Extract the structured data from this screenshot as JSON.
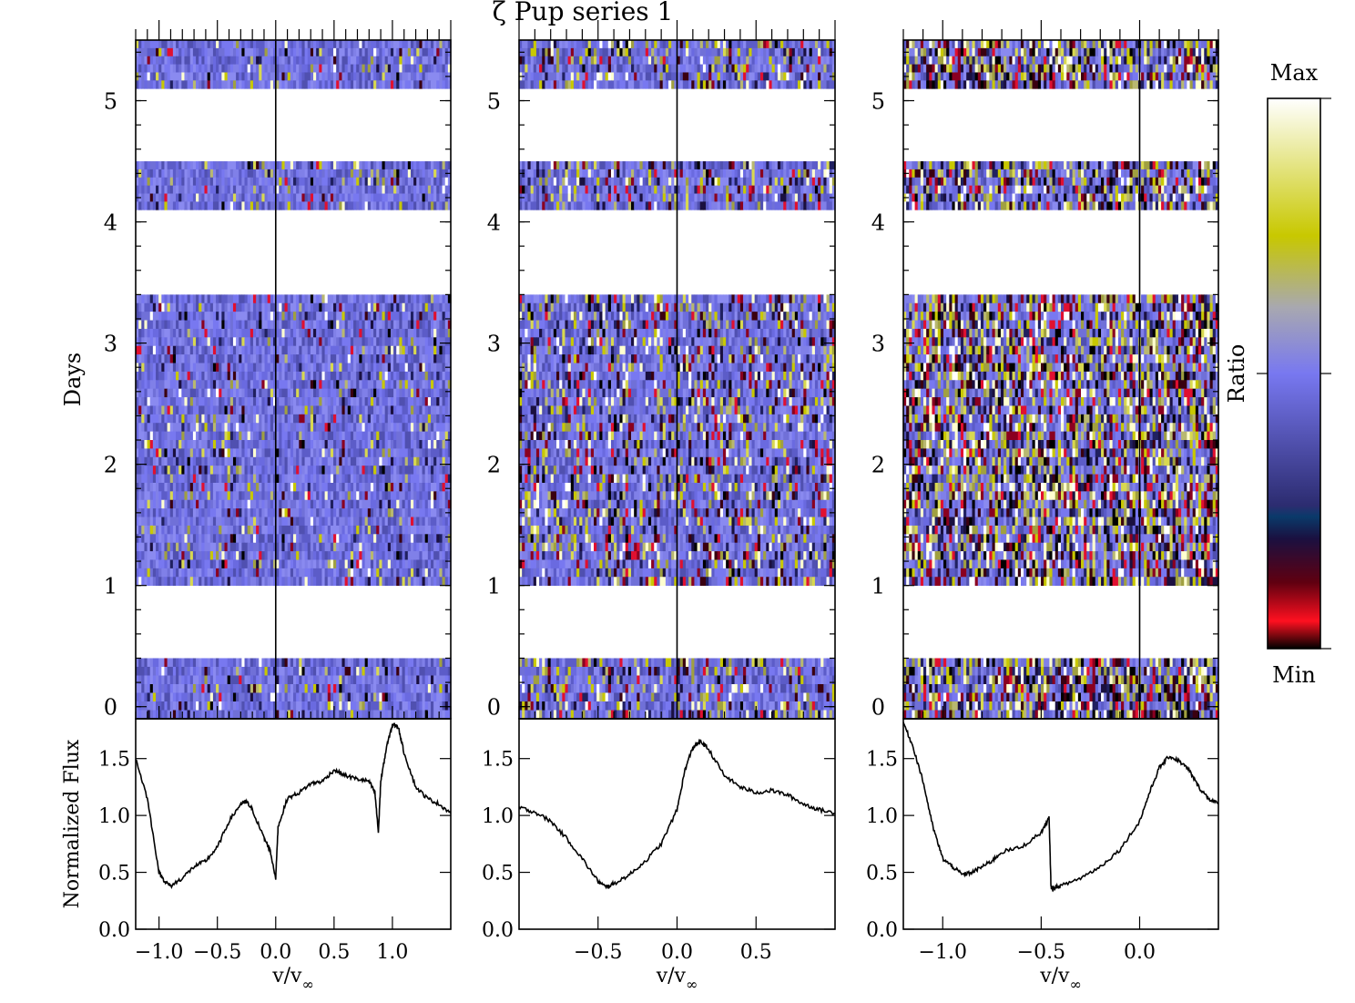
{
  "figure": {
    "title": "ζ Pup series 1"
  },
  "chart_data": [
    {
      "type": "heatmap",
      "panel": "left",
      "ylabel": "Days",
      "ylim": [
        -0.1,
        5.5
      ],
      "xlim": [
        -1.2,
        1.5
      ],
      "y_ticks": [
        "0",
        "1",
        "2",
        "3",
        "4",
        "5"
      ],
      "day_bands": [
        [
          -0.1,
          0.4
        ],
        [
          1.0,
          3.4
        ],
        [
          4.1,
          4.5
        ],
        [
          5.1,
          5.5
        ]
      ],
      "zero_line": 0.0
    },
    {
      "type": "heatmap",
      "panel": "middle",
      "ylim": [
        -0.1,
        5.5
      ],
      "xlim": [
        -1.0,
        1.0
      ],
      "y_ticks": [
        "0",
        "1",
        "2",
        "3",
        "4",
        "5"
      ],
      "day_bands": [
        [
          -0.1,
          0.4
        ],
        [
          1.0,
          3.4
        ],
        [
          4.1,
          4.5
        ],
        [
          5.1,
          5.5
        ]
      ],
      "zero_line": 0.0
    },
    {
      "type": "heatmap",
      "panel": "right",
      "ylim": [
        -0.1,
        5.5
      ],
      "xlim": [
        -1.2,
        0.4
      ],
      "y_ticks": [
        "0",
        "1",
        "2",
        "3",
        "4",
        "5"
      ],
      "day_bands": [
        [
          -0.1,
          0.4
        ],
        [
          1.0,
          3.4
        ],
        [
          4.1,
          4.5
        ],
        [
          5.1,
          5.5
        ]
      ],
      "zero_line": 0.0
    },
    {
      "type": "line",
      "panel": "left",
      "ylabel": "Normalized Flux",
      "xlabel": "v/v∞",
      "xlim": [
        -1.2,
        1.5
      ],
      "ylim": [
        0.0,
        1.85
      ],
      "x_ticks": [
        "−1.0",
        "−0.5",
        "0.0",
        "0.5",
        "1.0"
      ],
      "y_ticks": [
        "0.0",
        "0.5",
        "1.0",
        "1.5"
      ],
      "x": [
        -1.2,
        -1.1,
        -1.0,
        -0.95,
        -0.9,
        -0.8,
        -0.7,
        -0.6,
        -0.5,
        -0.4,
        -0.3,
        -0.25,
        -0.2,
        -0.1,
        -0.05,
        0.0,
        0.02,
        0.1,
        0.2,
        0.3,
        0.4,
        0.5,
        0.6,
        0.7,
        0.8,
        0.85,
        0.88,
        0.9,
        0.95,
        1.0,
        1.05,
        1.1,
        1.2,
        1.3,
        1.4,
        1.5
      ],
      "y": [
        1.5,
        1.15,
        0.5,
        0.42,
        0.38,
        0.45,
        0.55,
        0.6,
        0.72,
        0.95,
        1.1,
        1.12,
        1.05,
        0.8,
        0.7,
        0.45,
        0.9,
        1.15,
        1.2,
        1.28,
        1.3,
        1.4,
        1.35,
        1.32,
        1.3,
        1.2,
        0.85,
        1.3,
        1.6,
        1.8,
        1.78,
        1.55,
        1.25,
        1.15,
        1.1,
        1.02
      ]
    },
    {
      "type": "line",
      "panel": "middle",
      "xlabel": "v/v∞",
      "xlim": [
        -1.0,
        1.0
      ],
      "ylim": [
        0.0,
        1.85
      ],
      "x_ticks": [
        "−0.5",
        "0.0",
        "0.5"
      ],
      "y_ticks": [
        "0.0",
        "0.5",
        "1.0",
        "1.5"
      ],
      "x": [
        -1.0,
        -0.9,
        -0.8,
        -0.7,
        -0.6,
        -0.5,
        -0.45,
        -0.4,
        -0.3,
        -0.2,
        -0.1,
        0.0,
        0.05,
        0.1,
        0.15,
        0.2,
        0.3,
        0.4,
        0.5,
        0.6,
        0.7,
        0.8,
        0.9,
        1.0
      ],
      "y": [
        1.07,
        1.03,
        0.95,
        0.8,
        0.62,
        0.42,
        0.37,
        0.4,
        0.48,
        0.6,
        0.75,
        1.05,
        1.4,
        1.6,
        1.65,
        1.58,
        1.35,
        1.25,
        1.2,
        1.22,
        1.18,
        1.1,
        1.05,
        1.02
      ]
    },
    {
      "type": "line",
      "panel": "right",
      "xlabel": "v/v∞",
      "xlim": [
        -1.2,
        0.4
      ],
      "ylim": [
        0.0,
        1.85
      ],
      "x_ticks": [
        "−1.0",
        "−0.5",
        "0.0"
      ],
      "y_ticks": [
        "0.0",
        "0.5",
        "1.0",
        "1.5"
      ],
      "x": [
        -1.2,
        -1.15,
        -1.1,
        -1.05,
        -1.0,
        -0.95,
        -0.9,
        -0.85,
        -0.8,
        -0.75,
        -0.7,
        -0.6,
        -0.5,
        -0.46,
        -0.45,
        -0.44,
        -0.4,
        -0.3,
        -0.2,
        -0.1,
        0.0,
        0.05,
        0.1,
        0.15,
        0.2,
        0.25,
        0.3,
        0.35,
        0.4
      ],
      "y": [
        1.82,
        1.6,
        1.3,
        0.9,
        0.62,
        0.55,
        0.48,
        0.5,
        0.55,
        0.6,
        0.68,
        0.72,
        0.85,
        0.98,
        0.37,
        0.36,
        0.38,
        0.45,
        0.55,
        0.7,
        0.95,
        1.2,
        1.42,
        1.52,
        1.48,
        1.4,
        1.25,
        1.15,
        1.1
      ]
    }
  ],
  "colorbar": {
    "top_label": "Max",
    "bottom_label": "Min",
    "side_label": "Ratio",
    "stops": [
      "#000000",
      "#ff1020",
      "#1a1040",
      "#0a3a6a",
      "#2c2c70",
      "#7878f0",
      "#a8a8b0",
      "#c8c800",
      "#ffffff"
    ]
  }
}
